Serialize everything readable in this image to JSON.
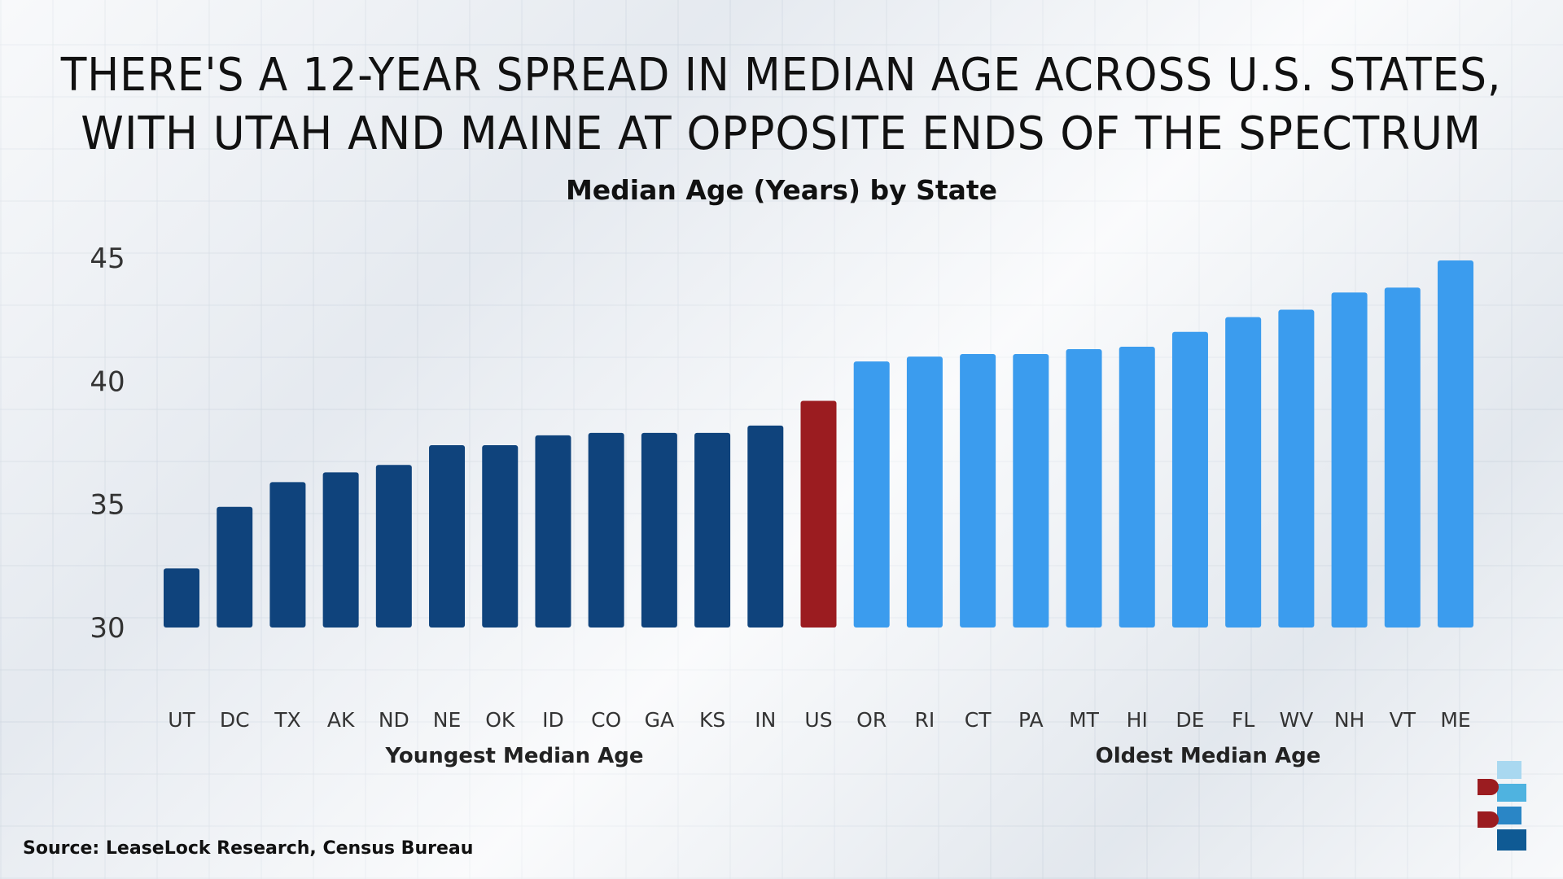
{
  "title_lines": [
    "THERE'S A 12-YEAR SPREAD IN MEDIAN AGE ACROSS U.S. STATES,",
    "WITH UTAH AND MAINE AT OPPOSITE ENDS OF THE SPECTRUM"
  ],
  "source": "Source: LeaseLock Research, Census Bureau",
  "chart_data": {
    "type": "bar",
    "title": "Median Age (Years) by State",
    "xlabel": "",
    "ylabel": "",
    "ylim": [
      30,
      45
    ],
    "yticks": [
      "30",
      "35",
      "40",
      "45"
    ],
    "grid": false,
    "categories": [
      "UT",
      "DC",
      "TX",
      "AK",
      "ND",
      "NE",
      "OK",
      "ID",
      "CO",
      "GA",
      "KS",
      "IN",
      "US",
      "OR",
      "RI",
      "CT",
      "PA",
      "MT",
      "HI",
      "DE",
      "FL",
      "WV",
      "NH",
      "VT",
      "ME"
    ],
    "values": [
      32.4,
      34.9,
      35.9,
      36.3,
      36.6,
      37.4,
      37.4,
      37.8,
      37.9,
      37.9,
      37.9,
      38.2,
      39.2,
      40.8,
      41.0,
      41.1,
      41.1,
      41.3,
      41.4,
      42.0,
      42.6,
      42.9,
      43.6,
      43.8,
      44.9
    ],
    "group_labels": [
      "Youngest Median Age",
      "Oldest Median Age"
    ],
    "colors": {
      "youngest": "#0f437c",
      "us": "#9b1c20",
      "oldest": "#3b9cee"
    }
  }
}
